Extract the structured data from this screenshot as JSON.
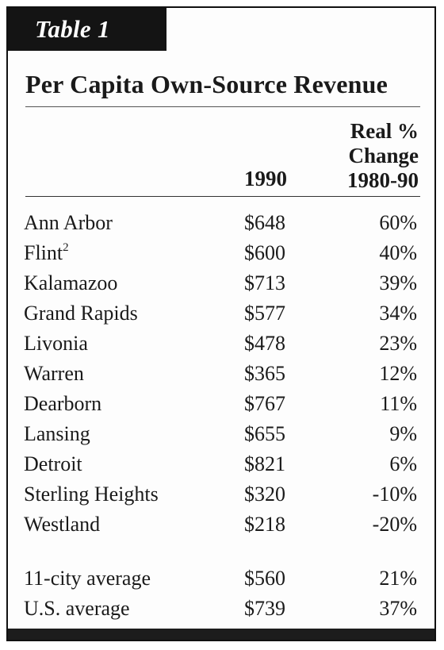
{
  "label": "Table 1",
  "title": "Per Capita Own-Source Revenue",
  "columns": {
    "year": "1990",
    "change": [
      "Real %",
      "Change",
      "1980-90"
    ]
  },
  "rows": [
    {
      "city": "Ann Arbor",
      "value": "$648",
      "change": "60%"
    },
    {
      "city": "Flint",
      "footnote": "2",
      "value": "$600",
      "change": "40%"
    },
    {
      "city": "Kalamazoo",
      "value": "$713",
      "change": "39%"
    },
    {
      "city": "Grand Rapids",
      "value": "$577",
      "change": "34%"
    },
    {
      "city": "Livonia",
      "value": "$478",
      "change": "23%"
    },
    {
      "city": "Warren",
      "value": "$365",
      "change": "12%"
    },
    {
      "city": "Dearborn",
      "value": "$767",
      "change": "11%"
    },
    {
      "city": "Lansing",
      "value": "$655",
      "change": "9%"
    },
    {
      "city": "Detroit",
      "value": "$821",
      "change": "6%"
    },
    {
      "city": "Sterling Heights",
      "value": "$320",
      "change": "-10%"
    },
    {
      "city": "Westland",
      "value": "$218",
      "change": "-20%"
    }
  ],
  "averages": [
    {
      "city": "11-city average",
      "value": "$560",
      "change": "21%"
    },
    {
      "city": "U.S. average",
      "value": "$739",
      "change": "37%"
    }
  ]
}
